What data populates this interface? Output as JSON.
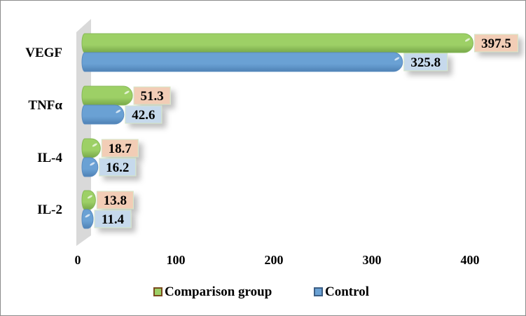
{
  "chart_data": {
    "type": "bar",
    "orientation": "horizontal",
    "categories": [
      "VEGF",
      "TNFα",
      "IL-4",
      "IL-2"
    ],
    "series": [
      {
        "name": "Comparison group",
        "values": [
          397.5,
          51.3,
          18.7,
          13.8
        ],
        "color": "#9dd066",
        "label_bg": "#f2cdb6"
      },
      {
        "name": "Control",
        "values": [
          325.8,
          42.6,
          16.2,
          11.4
        ],
        "color": "#6aa1d4",
        "label_bg": "#c6d9ec"
      }
    ],
    "value_labels": [
      [
        "397.5",
        "51.3",
        "18.7",
        "13.8"
      ],
      [
        "325.8",
        "42.6",
        "16.2",
        "11.4"
      ]
    ],
    "xticks": [
      "0",
      "100",
      "200",
      "300",
      "400"
    ],
    "xlim": [
      0,
      450
    ],
    "title": "",
    "xlabel": "",
    "ylabel": "",
    "legend": {
      "placement": "bottom",
      "entries": [
        "Comparison group",
        "Control"
      ]
    },
    "grid": false
  }
}
